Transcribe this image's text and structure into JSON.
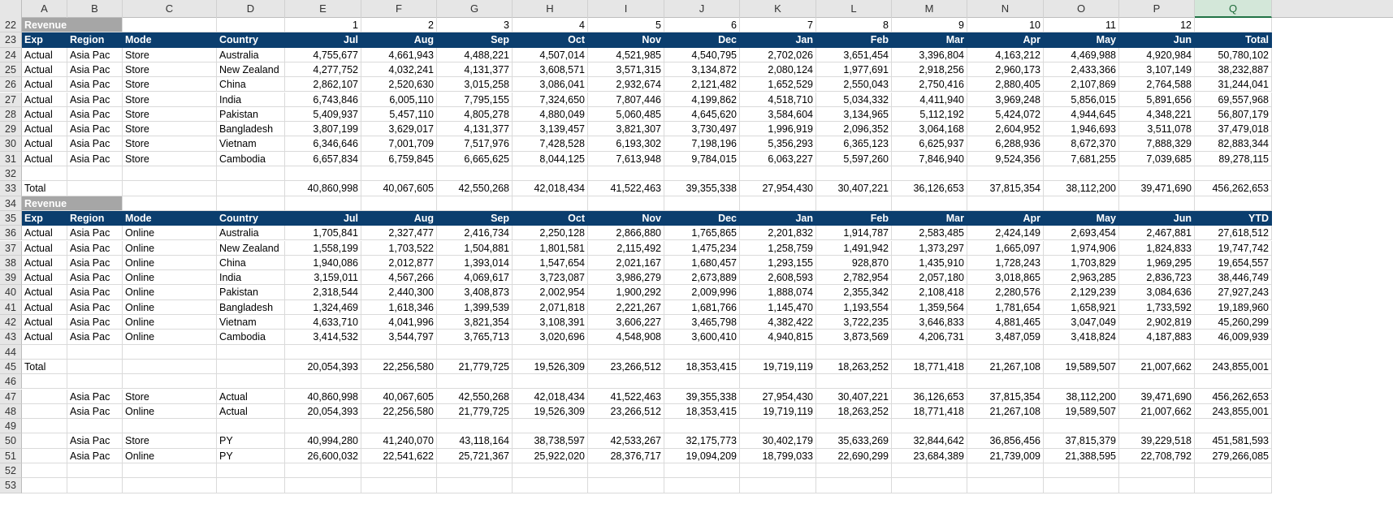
{
  "columns": [
    "A",
    "B",
    "C",
    "D",
    "E",
    "F",
    "G",
    "H",
    "I",
    "J",
    "K",
    "L",
    "M",
    "N",
    "O",
    "P",
    "Q"
  ],
  "selected_column": "Q",
  "rows": [
    {
      "n": "22",
      "type": "revenue",
      "label": "Revenue",
      "months": [
        "",
        "",
        "",
        "",
        "1",
        "2",
        "3",
        "4",
        "5",
        "6",
        "7",
        "8",
        "9",
        "10",
        "11",
        "12",
        ""
      ]
    },
    {
      "n": "23",
      "type": "header",
      "cells": [
        "Exp",
        "Region",
        "Mode",
        "Country",
        "Jul",
        "Aug",
        "Sep",
        "Oct",
        "Nov",
        "Dec",
        "Jan",
        "Feb",
        "Mar",
        "Apr",
        "May",
        "Jun",
        "Total"
      ]
    },
    {
      "n": "24",
      "type": "data",
      "cells": [
        "Actual",
        "Asia Pac",
        "Store",
        "Australia",
        "4,755,677",
        "4,661,943",
        "4,488,221",
        "4,507,014",
        "4,521,985",
        "4,540,795",
        "2,702,026",
        "3,651,454",
        "3,396,804",
        "4,163,212",
        "4,469,988",
        "4,920,984",
        "50,780,102"
      ]
    },
    {
      "n": "25",
      "type": "data",
      "cells": [
        "Actual",
        "Asia Pac",
        "Store",
        "New Zealand",
        "4,277,752",
        "4,032,241",
        "4,131,377",
        "3,608,571",
        "3,571,315",
        "3,134,872",
        "2,080,124",
        "1,977,691",
        "2,918,256",
        "2,960,173",
        "2,433,366",
        "3,107,149",
        "38,232,887"
      ]
    },
    {
      "n": "26",
      "type": "data",
      "cells": [
        "Actual",
        "Asia Pac",
        "Store",
        "China",
        "2,862,107",
        "2,520,630",
        "3,015,258",
        "3,086,041",
        "2,932,674",
        "2,121,482",
        "1,652,529",
        "2,550,043",
        "2,750,416",
        "2,880,405",
        "2,107,869",
        "2,764,588",
        "31,244,041"
      ]
    },
    {
      "n": "27",
      "type": "data",
      "cells": [
        "Actual",
        "Asia Pac",
        "Store",
        "India",
        "6,743,846",
        "6,005,110",
        "7,795,155",
        "7,324,650",
        "7,807,446",
        "4,199,862",
        "4,518,710",
        "5,034,332",
        "4,411,940",
        "3,969,248",
        "5,856,015",
        "5,891,656",
        "69,557,968"
      ]
    },
    {
      "n": "28",
      "type": "data",
      "cells": [
        "Actual",
        "Asia Pac",
        "Store",
        "Pakistan",
        "5,409,937",
        "5,457,110",
        "4,805,278",
        "4,880,049",
        "5,060,485",
        "4,645,620",
        "3,584,604",
        "3,134,965",
        "5,112,192",
        "5,424,072",
        "4,944,645",
        "4,348,221",
        "56,807,179"
      ]
    },
    {
      "n": "29",
      "type": "data",
      "cells": [
        "Actual",
        "Asia Pac",
        "Store",
        "Bangladesh",
        "3,807,199",
        "3,629,017",
        "4,131,377",
        "3,139,457",
        "3,821,307",
        "3,730,497",
        "1,996,919",
        "2,096,352",
        "3,064,168",
        "2,604,952",
        "1,946,693",
        "3,511,078",
        "37,479,018"
      ]
    },
    {
      "n": "30",
      "type": "data",
      "cells": [
        "Actual",
        "Asia Pac",
        "Store",
        "Vietnam",
        "6,346,646",
        "7,001,709",
        "7,517,976",
        "7,428,528",
        "6,193,302",
        "7,198,196",
        "5,356,293",
        "6,365,123",
        "6,625,937",
        "6,288,936",
        "8,672,370",
        "7,888,329",
        "82,883,344"
      ]
    },
    {
      "n": "31",
      "type": "data",
      "cells": [
        "Actual",
        "Asia Pac",
        "Store",
        "Cambodia",
        "6,657,834",
        "6,759,845",
        "6,665,625",
        "8,044,125",
        "7,613,948",
        "9,784,015",
        "6,063,227",
        "5,597,260",
        "7,846,940",
        "9,524,356",
        "7,681,255",
        "7,039,685",
        "89,278,115"
      ]
    },
    {
      "n": "32",
      "type": "data",
      "cells": [
        "",
        "",
        "",
        "",
        "",
        "",
        "",
        "",
        "",
        "",
        "",
        "",
        "",
        "",
        "",
        "",
        ""
      ]
    },
    {
      "n": "33",
      "type": "data",
      "cells": [
        "Total",
        "",
        "",
        "",
        "40,860,998",
        "40,067,605",
        "42,550,268",
        "42,018,434",
        "41,522,463",
        "39,355,338",
        "27,954,430",
        "30,407,221",
        "36,126,653",
        "37,815,354",
        "38,112,200",
        "39,471,690",
        "456,262,653"
      ]
    },
    {
      "n": "34",
      "type": "revenue",
      "label": "Revenue",
      "months": [
        "",
        "",
        "",
        "",
        "",
        "",
        "",
        "",
        "",
        "",
        "",
        "",
        "",
        "",
        "",
        "",
        ""
      ]
    },
    {
      "n": "35",
      "type": "header",
      "cells": [
        "Exp",
        "Region",
        "Mode",
        "Country",
        "Jul",
        "Aug",
        "Sep",
        "Oct",
        "Nov",
        "Dec",
        "Jan",
        "Feb",
        "Mar",
        "Apr",
        "May",
        "Jun",
        "YTD"
      ]
    },
    {
      "n": "36",
      "type": "data",
      "cells": [
        "Actual",
        "Asia Pac",
        "Online",
        "Australia",
        "1,705,841",
        "2,327,477",
        "2,416,734",
        "2,250,128",
        "2,866,880",
        "1,765,865",
        "2,201,832",
        "1,914,787",
        "2,583,485",
        "2,424,149",
        "2,693,454",
        "2,467,881",
        "27,618,512"
      ]
    },
    {
      "n": "37",
      "type": "data",
      "cells": [
        "Actual",
        "Asia Pac",
        "Online",
        "New Zealand",
        "1,558,199",
        "1,703,522",
        "1,504,881",
        "1,801,581",
        "2,115,492",
        "1,475,234",
        "1,258,759",
        "1,491,942",
        "1,373,297",
        "1,665,097",
        "1,974,906",
        "1,824,833",
        "19,747,742"
      ]
    },
    {
      "n": "38",
      "type": "data",
      "cells": [
        "Actual",
        "Asia Pac",
        "Online",
        "China",
        "1,940,086",
        "2,012,877",
        "1,393,014",
        "1,547,654",
        "2,021,167",
        "1,680,457",
        "1,293,155",
        "928,870",
        "1,435,910",
        "1,728,243",
        "1,703,829",
        "1,969,295",
        "19,654,557"
      ]
    },
    {
      "n": "39",
      "type": "data",
      "cells": [
        "Actual",
        "Asia Pac",
        "Online",
        "India",
        "3,159,011",
        "4,567,266",
        "4,069,617",
        "3,723,087",
        "3,986,279",
        "2,673,889",
        "2,608,593",
        "2,782,954",
        "2,057,180",
        "3,018,865",
        "2,963,285",
        "2,836,723",
        "38,446,749"
      ]
    },
    {
      "n": "40",
      "type": "data",
      "cells": [
        "Actual",
        "Asia Pac",
        "Online",
        "Pakistan",
        "2,318,544",
        "2,440,300",
        "3,408,873",
        "2,002,954",
        "1,900,292",
        "2,009,996",
        "1,888,074",
        "2,355,342",
        "2,108,418",
        "2,280,576",
        "2,129,239",
        "3,084,636",
        "27,927,243"
      ]
    },
    {
      "n": "41",
      "type": "data",
      "cells": [
        "Actual",
        "Asia Pac",
        "Online",
        "Bangladesh",
        "1,324,469",
        "1,618,346",
        "1,399,539",
        "2,071,818",
        "2,221,267",
        "1,681,766",
        "1,145,470",
        "1,193,554",
        "1,359,564",
        "1,781,654",
        "1,658,921",
        "1,733,592",
        "19,189,960"
      ]
    },
    {
      "n": "42",
      "type": "data",
      "cells": [
        "Actual",
        "Asia Pac",
        "Online",
        "Vietnam",
        "4,633,710",
        "4,041,996",
        "3,821,354",
        "3,108,391",
        "3,606,227",
        "3,465,798",
        "4,382,422",
        "3,722,235",
        "3,646,833",
        "4,881,465",
        "3,047,049",
        "2,902,819",
        "45,260,299"
      ]
    },
    {
      "n": "43",
      "type": "data",
      "cells": [
        "Actual",
        "Asia Pac",
        "Online",
        "Cambodia",
        "3,414,532",
        "3,544,797",
        "3,765,713",
        "3,020,696",
        "4,548,908",
        "3,600,410",
        "4,940,815",
        "3,873,569",
        "4,206,731",
        "3,487,059",
        "3,418,824",
        "4,187,883",
        "46,009,939"
      ]
    },
    {
      "n": "44",
      "type": "data",
      "cells": [
        "",
        "",
        "",
        "",
        "",
        "",
        "",
        "",
        "",
        "",
        "",
        "",
        "",
        "",
        "",
        "",
        ""
      ]
    },
    {
      "n": "45",
      "type": "data",
      "cells": [
        "Total",
        "",
        "",
        "",
        "20,054,393",
        "22,256,580",
        "21,779,725",
        "19,526,309",
        "23,266,512",
        "18,353,415",
        "19,719,119",
        "18,263,252",
        "18,771,418",
        "21,267,108",
        "19,589,507",
        "21,007,662",
        "243,855,001"
      ]
    },
    {
      "n": "46",
      "type": "data",
      "cells": [
        "",
        "",
        "",
        "",
        "",
        "",
        "",
        "",
        "",
        "",
        "",
        "",
        "",
        "",
        "",
        "",
        ""
      ]
    },
    {
      "n": "47",
      "type": "data",
      "cells": [
        "",
        "Asia Pac",
        "Store",
        "Actual",
        "40,860,998",
        "40,067,605",
        "42,550,268",
        "42,018,434",
        "41,522,463",
        "39,355,338",
        "27,954,430",
        "30,407,221",
        "36,126,653",
        "37,815,354",
        "38,112,200",
        "39,471,690",
        "456,262,653"
      ]
    },
    {
      "n": "48",
      "type": "data",
      "cells": [
        "",
        "Asia Pac",
        "Online",
        "Actual",
        "20,054,393",
        "22,256,580",
        "21,779,725",
        "19,526,309",
        "23,266,512",
        "18,353,415",
        "19,719,119",
        "18,263,252",
        "18,771,418",
        "21,267,108",
        "19,589,507",
        "21,007,662",
        "243,855,001"
      ]
    },
    {
      "n": "49",
      "type": "data",
      "cells": [
        "",
        "",
        "",
        "",
        "",
        "",
        "",
        "",
        "",
        "",
        "",
        "",
        "",
        "",
        "",
        "",
        ""
      ]
    },
    {
      "n": "50",
      "type": "data",
      "cells": [
        "",
        "Asia Pac",
        "Store",
        "PY",
        "40,994,280",
        "41,240,070",
        "43,118,164",
        "38,738,597",
        "42,533,267",
        "32,175,773",
        "30,402,179",
        "35,633,269",
        "32,844,642",
        "36,856,456",
        "37,815,379",
        "39,229,518",
        "451,581,593"
      ]
    },
    {
      "n": "51",
      "type": "data",
      "cells": [
        "",
        "Asia Pac",
        "Online",
        "PY",
        "26,600,032",
        "22,541,622",
        "25,721,367",
        "25,922,020",
        "28,376,717",
        "19,094,209",
        "18,799,033",
        "22,690,299",
        "23,684,389",
        "21,739,009",
        "21,388,595",
        "22,708,792",
        "279,266,085"
      ]
    },
    {
      "n": "52",
      "type": "data",
      "cells": [
        "",
        "",
        "",
        "",
        "",
        "",
        "",
        "",
        "",
        "",
        "",
        "",
        "",
        "",
        "",
        "",
        ""
      ]
    },
    {
      "n": "53",
      "type": "data",
      "cells": [
        "",
        "",
        "",
        "",
        "",
        "",
        "",
        "",
        "",
        "",
        "",
        "",
        "",
        "",
        "",
        "",
        ""
      ]
    }
  ]
}
